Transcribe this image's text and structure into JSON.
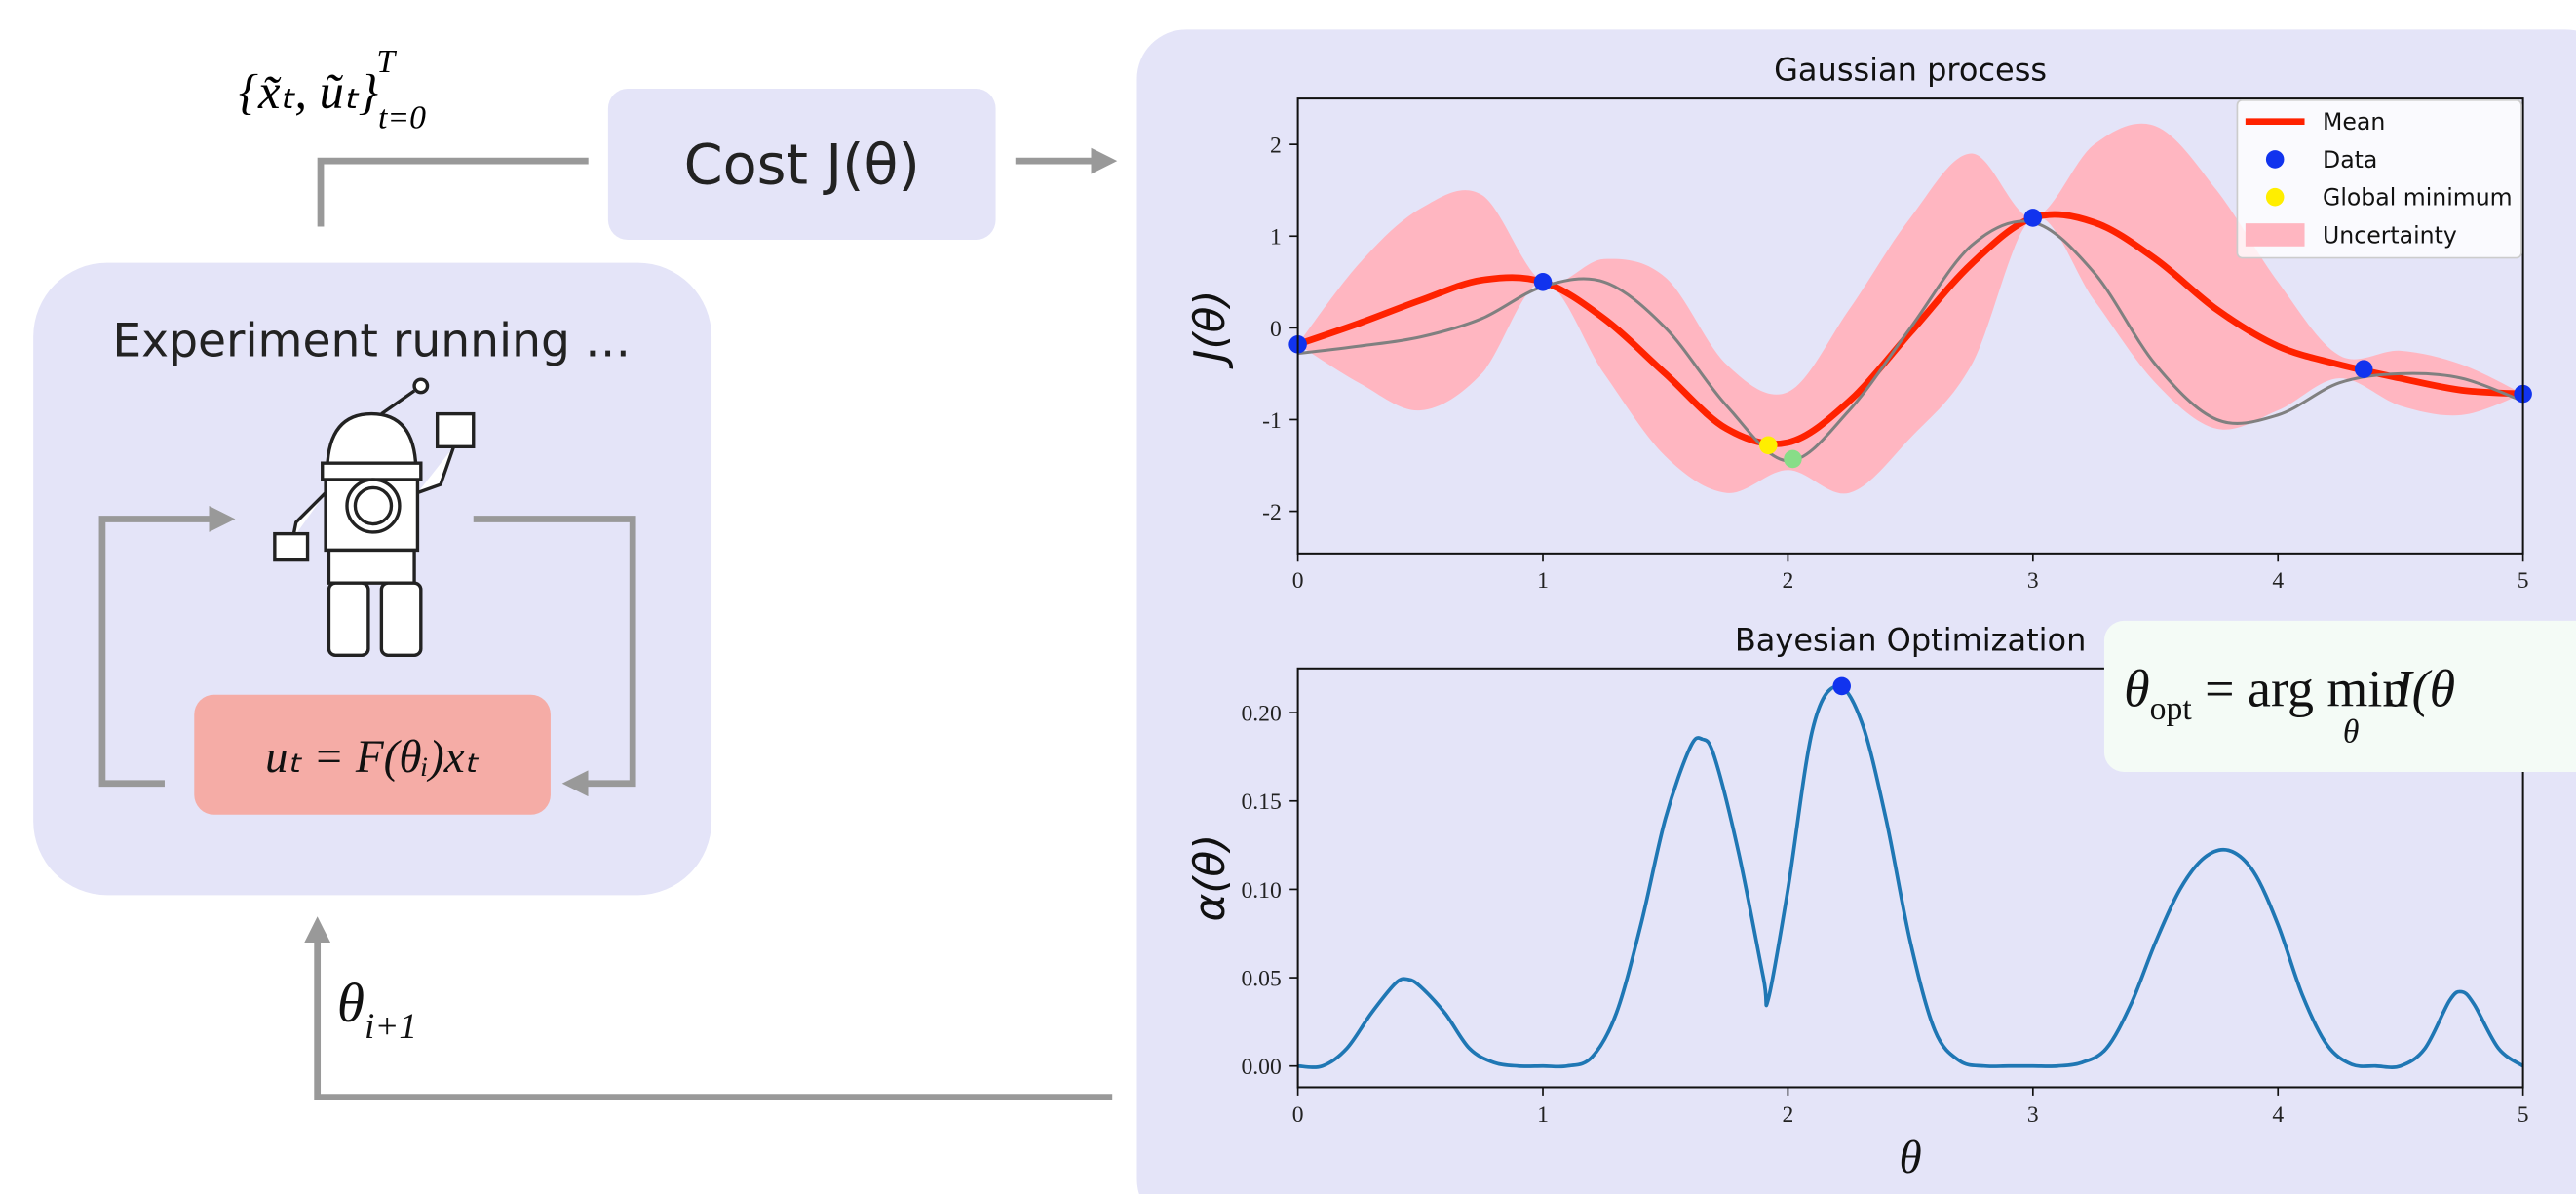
{
  "diagram": {
    "trajectory": {
      "text": "{x̃ₜ, ũₜ}",
      "sub": "t=0",
      "sup": "T"
    },
    "cost": "Cost  J(θ)",
    "experiment": "Experiment running …",
    "controller": "uₜ = F(θᵢ)xₜ",
    "theta_next": {
      "text": "θ",
      "sub": "i+1"
    },
    "theta_opt": {
      "text": "θ",
      "sub": "opt",
      "rest": " = arg min",
      "under": "θ",
      "tail": " J(θ"
    }
  },
  "chart_data": [
    {
      "type": "line",
      "title": "Gaussian process",
      "ylabel": "J(θ)",
      "xlim": [
        0,
        5
      ],
      "ylim": [
        -2.46,
        2.5
      ],
      "xticks": [
        0,
        1,
        2,
        3,
        4,
        5
      ],
      "yticks": [
        -2,
        -1,
        0,
        1,
        2
      ],
      "x": [
        0,
        0.25,
        0.5,
        0.75,
        1,
        1.25,
        1.5,
        1.75,
        2,
        2.25,
        2.5,
        2.75,
        3,
        3.25,
        3.5,
        3.75,
        4,
        4.25,
        4.5,
        4.75,
        5
      ],
      "series": [
        {
          "name": "Mean",
          "color": "#ff2200",
          "values": [
            -0.18,
            0.05,
            0.3,
            0.52,
            0.5,
            0.1,
            -0.5,
            -1.1,
            -1.25,
            -0.8,
            -0.05,
            0.7,
            1.2,
            1.15,
            0.75,
            0.2,
            -0.2,
            -0.4,
            -0.55,
            -0.68,
            -0.72
          ]
        },
        {
          "color": "#808080",
          "values": [
            -0.28,
            -0.2,
            -0.1,
            0.1,
            0.45,
            0.5,
            0.0,
            -0.85,
            -1.45,
            -0.9,
            0.0,
            0.9,
            1.15,
            0.6,
            -0.4,
            -1.0,
            -0.95,
            -0.6,
            -0.5,
            -0.55,
            -0.8
          ]
        }
      ],
      "band": {
        "name": "Uncertainty",
        "color": "#ffb6c1",
        "upper": [
          -0.18,
          0.7,
          1.3,
          1.45,
          0.5,
          0.75,
          0.55,
          -0.4,
          -0.7,
          0.2,
          1.2,
          1.9,
          1.2,
          2.0,
          2.2,
          1.5,
          0.5,
          -0.3,
          -0.25,
          -0.4,
          -0.72
        ],
        "lower": [
          -0.18,
          -0.6,
          -0.9,
          -0.5,
          0.5,
          -0.5,
          -1.4,
          -1.8,
          -1.55,
          -1.8,
          -1.2,
          -0.4,
          1.2,
          0.3,
          -0.6,
          -1.1,
          -0.9,
          -0.55,
          -0.85,
          -0.95,
          -0.72
        ]
      },
      "points": [
        {
          "name": "Data",
          "color": "#1133ee",
          "x": [
            0,
            1,
            3,
            4.35,
            5
          ],
          "y": [
            -0.18,
            0.5,
            1.2,
            -0.45,
            -0.72
          ]
        },
        {
          "name": "Global minimum",
          "color": "#ffee00",
          "x": [
            1.92
          ],
          "y": [
            -1.28
          ]
        },
        {
          "color": "#88dd88",
          "x": [
            2.02
          ],
          "y": [
            -1.43
          ]
        }
      ],
      "legend": "upper right"
    },
    {
      "type": "line",
      "title": "Bayesian Optimization",
      "ylabel": "α(θ)",
      "xlabel": "θ",
      "xlim": [
        0,
        5
      ],
      "ylim": [
        -0.012,
        0.225
      ],
      "xticks": [
        0,
        1,
        2,
        3,
        4,
        5
      ],
      "yticks": [
        {
          "value": 0,
          "label": "0.00"
        },
        {
          "value": 0.05,
          "label": "0.05"
        },
        {
          "value": 0.1,
          "label": "0.10"
        },
        {
          "value": 0.15,
          "label": "0.15"
        },
        {
          "value": 0.2,
          "label": "0.20"
        }
      ],
      "x": [
        0,
        0.1,
        0.2,
        0.3,
        0.4,
        0.45,
        0.5,
        0.6,
        0.7,
        0.8,
        0.9,
        1.0,
        1.1,
        1.2,
        1.3,
        1.4,
        1.5,
        1.6,
        1.65,
        1.7,
        1.8,
        1.9,
        1.92,
        2.0,
        2.1,
        2.2,
        2.3,
        2.4,
        2.5,
        2.6,
        2.7,
        2.8,
        2.9,
        3.0,
        3.1,
        3.2,
        3.3,
        3.4,
        3.5,
        3.6,
        3.7,
        3.8,
        3.9,
        4.0,
        4.1,
        4.2,
        4.3,
        4.4,
        4.5,
        4.6,
        4.7,
        4.75,
        4.8,
        4.9,
        5.0
      ],
      "series": [
        {
          "color": "#1f77b4",
          "values": [
            0,
            0,
            0.01,
            0.03,
            0.047,
            0.049,
            0.045,
            0.03,
            0.01,
            0.002,
            0,
            0,
            0,
            0.005,
            0.03,
            0.08,
            0.14,
            0.18,
            0.185,
            0.175,
            0.12,
            0.05,
            0.038,
            0.1,
            0.19,
            0.215,
            0.195,
            0.14,
            0.07,
            0.02,
            0.003,
            0,
            0,
            0,
            0,
            0.002,
            0.01,
            0.035,
            0.07,
            0.1,
            0.118,
            0.122,
            0.11,
            0.08,
            0.04,
            0.012,
            0.001,
            0,
            0,
            0.01,
            0.037,
            0.042,
            0.035,
            0.01,
            0
          ]
        }
      ],
      "points": [
        {
          "color": "#1133ee",
          "x": [
            2.22
          ],
          "y": [
            0.215
          ]
        }
      ]
    }
  ]
}
